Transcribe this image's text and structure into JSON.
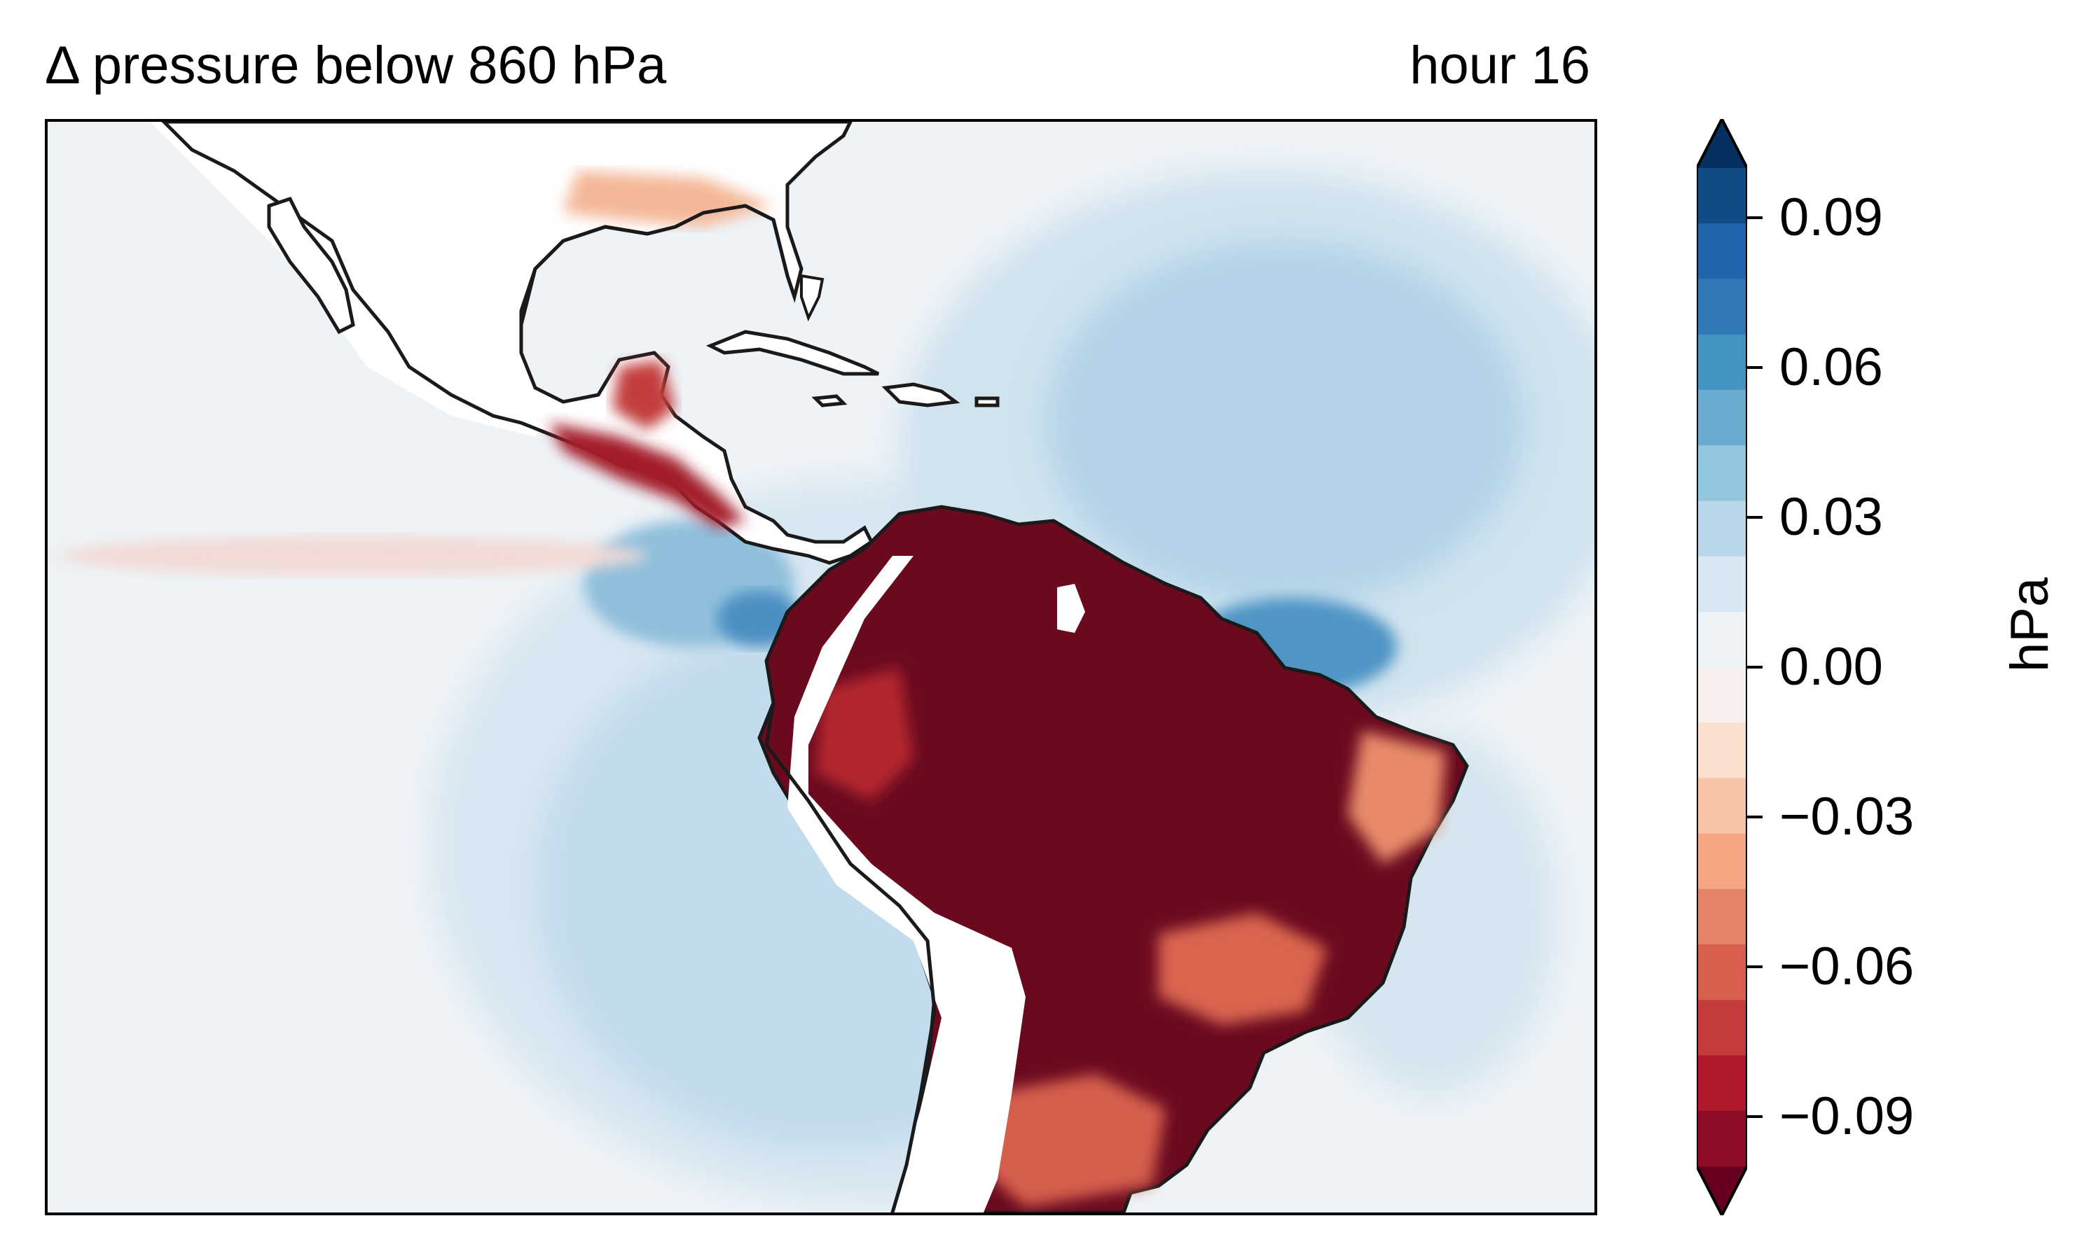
{
  "title": "Δ pressure below 860 hPa",
  "time_label": "hour 16",
  "colorbar": {
    "label": "hPa",
    "ticks": [
      "0.09",
      "0.06",
      "0.03",
      "0.00",
      "−0.03",
      "−0.06",
      "−0.09"
    ],
    "tick_values": [
      0.09,
      0.06,
      0.03,
      0.0,
      -0.03,
      -0.06,
      -0.09
    ],
    "range": [
      -0.1,
      0.1
    ],
    "extend": "both",
    "colormap": "RdBu_r",
    "colors": [
      "#67001f",
      "#8c0d25",
      "#b2182b",
      "#c43c3c",
      "#d6604d",
      "#e58368",
      "#f4a582",
      "#f7c3a6",
      "#fbdfcf",
      "#f7f0ec",
      "#eef3f7",
      "#d8e7f1",
      "#b9d7ea",
      "#92c5de",
      "#6aacd0",
      "#4393c3",
      "#3179b6",
      "#2166ac",
      "#134b87",
      "#053061"
    ]
  },
  "map": {
    "region": "Central and South America",
    "masked_color": "#ffffff",
    "coastline_color": "#1a1a1a"
  }
}
